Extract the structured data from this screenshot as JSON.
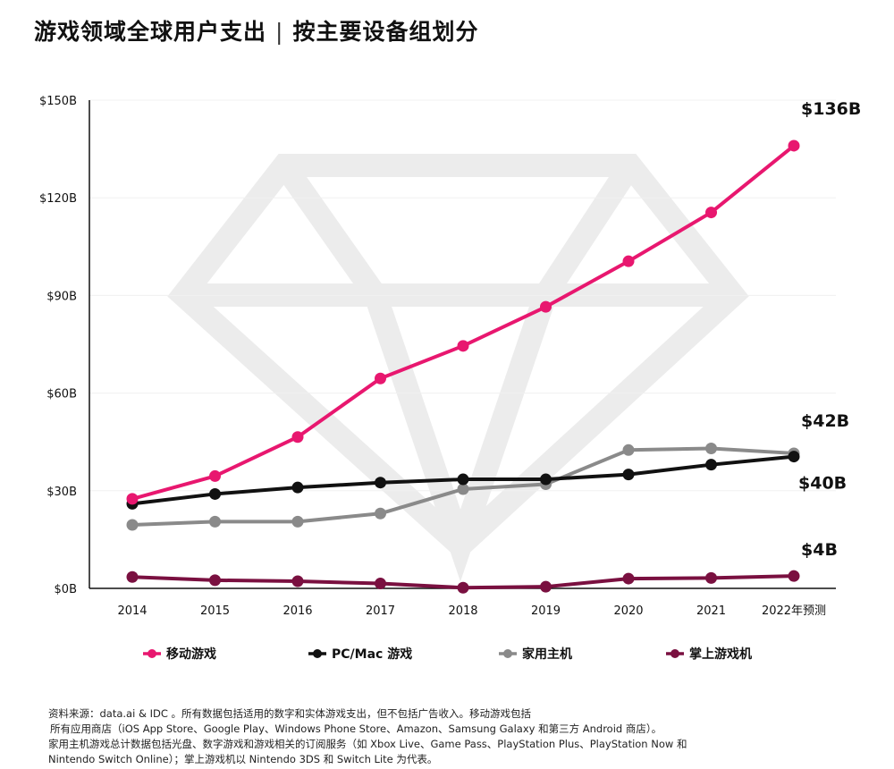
{
  "title": "游戏领域全球用户支出",
  "subtitle": "按主要设备组划分",
  "chart_data": {
    "type": "line",
    "x": [
      "2014",
      "2015",
      "2016",
      "2017",
      "2018",
      "2019",
      "2020",
      "2021",
      "2022年预测"
    ],
    "ylim": [
      0,
      150
    ],
    "yticks": [
      {
        "value": 0,
        "label": "$0B"
      },
      {
        "value": 30,
        "label": "$30B"
      },
      {
        "value": 60,
        "label": "$60B"
      },
      {
        "value": 90,
        "label": "$90B"
      },
      {
        "value": 120,
        "label": "$120B"
      },
      {
        "value": 150,
        "label": "$150B"
      }
    ],
    "grid": true,
    "legend_position": "bottom",
    "series": [
      {
        "name": "移动游戏",
        "color": "#e8176f",
        "end_label": "$136B",
        "values": [
          27.5,
          34.5,
          46.5,
          64.5,
          74.5,
          86.5,
          100.5,
          115.5,
          136
        ]
      },
      {
        "name": "PC/Mac 游戏",
        "color": "#111111",
        "end_label": "$40B",
        "values": [
          26,
          29,
          31,
          32.5,
          33.5,
          33.5,
          35,
          38,
          40.5
        ]
      },
      {
        "name": "家用主机",
        "color": "#8a8a8a",
        "end_label": "$42B",
        "values": [
          19.5,
          20.5,
          20.5,
          23,
          30.5,
          32,
          42.5,
          43,
          41.5
        ]
      },
      {
        "name": "掌上游戏机",
        "color": "#7a1040",
        "end_label": "$4B",
        "values": [
          3.5,
          2.5,
          2.2,
          1.5,
          0.2,
          0.5,
          3,
          3.2,
          3.8
        ]
      }
    ]
  },
  "source_lines": [
    "资料来源：data.ai & IDC 。所有数据包括适用的数字和实体游戏支出，但不包括广告收入。移动游戏包括",
    "所有应用商店（iOS App Store、Google Play、Windows Phone Store、Amazon、Samsung Galaxy 和第三方 Android 商店）。",
    "家用主机游戏总计数据包括光盘、数字游戏和游戏相关的订阅服务（如 Xbox Live、Game Pass、PlayStation Plus、PlayStation Now 和",
    "Nintendo Switch Online）；掌上游戏机以 Nintendo 3DS 和 Switch Lite 为代表。"
  ]
}
